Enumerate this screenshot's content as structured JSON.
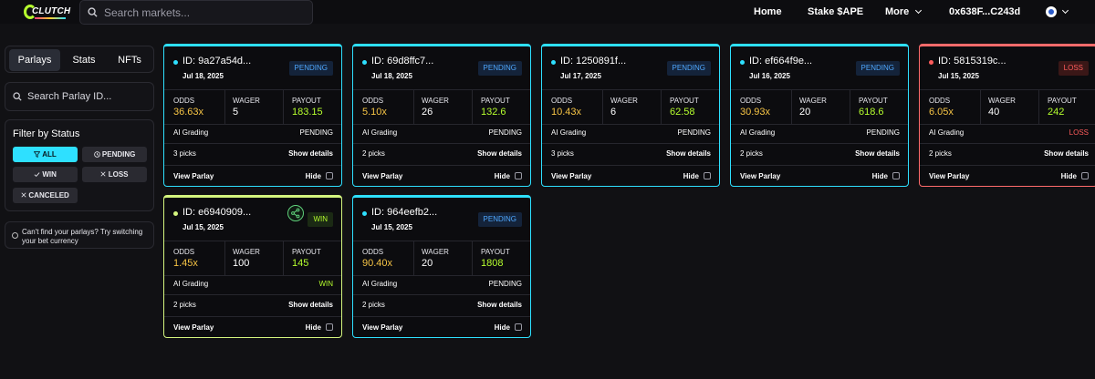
{
  "header": {
    "logo_text": "CLUTCH",
    "search_placeholder": "Search markets...",
    "nav": {
      "home": "Home",
      "stake": "Stake $APE",
      "more": "More",
      "wallet": "0x638F...C243d"
    }
  },
  "sidebar": {
    "tabs": [
      {
        "label": "Parlays",
        "active": true
      },
      {
        "label": "Stats",
        "active": false
      },
      {
        "label": "NFTs",
        "active": false
      }
    ],
    "search_placeholder": "Search Parlay ID...",
    "filter": {
      "title": "Filter by Status",
      "options": [
        {
          "label": "ALL",
          "icon": "filter-icon",
          "active": true
        },
        {
          "label": "PENDING",
          "icon": "clock-icon",
          "active": false
        },
        {
          "label": "WIN",
          "icon": "check-icon",
          "active": false
        },
        {
          "label": "LOSS",
          "icon": "x-icon",
          "active": false
        },
        {
          "label": "CANCELED",
          "icon": "x-icon",
          "active": false
        }
      ]
    },
    "hint": "Can't find your parlays? Try switching your bet currency"
  },
  "labels": {
    "odds": "ODDS",
    "wager": "WAGER",
    "payout": "PAYOUT",
    "ai_grading": "AI Grading",
    "show_details": "Show details",
    "view_parlay": "View Parlay",
    "hide": "Hide"
  },
  "colors": {
    "accent": "#2ee0ff",
    "win": "#b6ff2e",
    "loss": "#ff5c5c",
    "odds": "#f6c445"
  },
  "cards": [
    {
      "id": "ID: 9a27a54d...",
      "date": "Jul 18, 2025",
      "status": "PENDING",
      "odds": "36.63x",
      "wager": "5",
      "payout": "183.15",
      "grading": "PENDING",
      "picks": "3 picks"
    },
    {
      "id": "ID: 69d8ffc7...",
      "date": "Jul 18, 2025",
      "status": "PENDING",
      "odds": "5.10x",
      "wager": "26",
      "payout": "132.6",
      "grading": "PENDING",
      "picks": "2 picks"
    },
    {
      "id": "ID: 1250891f...",
      "date": "Jul 17, 2025",
      "status": "PENDING",
      "odds": "10.43x",
      "wager": "6",
      "payout": "62.58",
      "grading": "PENDING",
      "picks": "3 picks"
    },
    {
      "id": "ID: ef664f9e...",
      "date": "Jul 16, 2025",
      "status": "PENDING",
      "odds": "30.93x",
      "wager": "20",
      "payout": "618.6",
      "grading": "PENDING",
      "picks": "2 picks"
    },
    {
      "id": "ID: 5815319c...",
      "date": "Jul 15, 2025",
      "status": "LOSS",
      "odds": "6.05x",
      "wager": "40",
      "payout": "242",
      "grading": "LOSS",
      "picks": "2 picks"
    },
    {
      "id": "ID: e6940909...",
      "date": "Jul 15, 2025",
      "status": "WIN",
      "odds": "1.45x",
      "wager": "100",
      "payout": "145",
      "grading": "WIN",
      "picks": "2 picks"
    },
    {
      "id": "ID: 964eefb2...",
      "date": "Jul 15, 2025",
      "status": "PENDING",
      "odds": "90.40x",
      "wager": "20",
      "payout": "1808",
      "grading": "PENDING",
      "picks": "2 picks"
    }
  ]
}
